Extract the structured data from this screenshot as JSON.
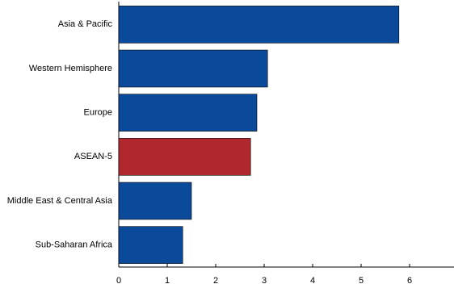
{
  "chart_data": {
    "type": "barh",
    "categories": [
      "Asia & Pacific",
      "Western Hemisphere",
      "Europe",
      "ASEAN-5",
      "Middle East & Central Asia",
      "Sub-Saharan Africa"
    ],
    "values": [
      5.78,
      3.07,
      2.85,
      2.72,
      1.5,
      1.32
    ],
    "colors": [
      "#0b4a9b",
      "#0b4a9b",
      "#0b4a9b",
      "#b0282e",
      "#0b4a9b",
      "#0b4a9b"
    ],
    "xlim": [
      0,
      6.9
    ],
    "xticks": [
      0,
      1,
      2,
      3,
      4,
      5,
      6
    ]
  }
}
